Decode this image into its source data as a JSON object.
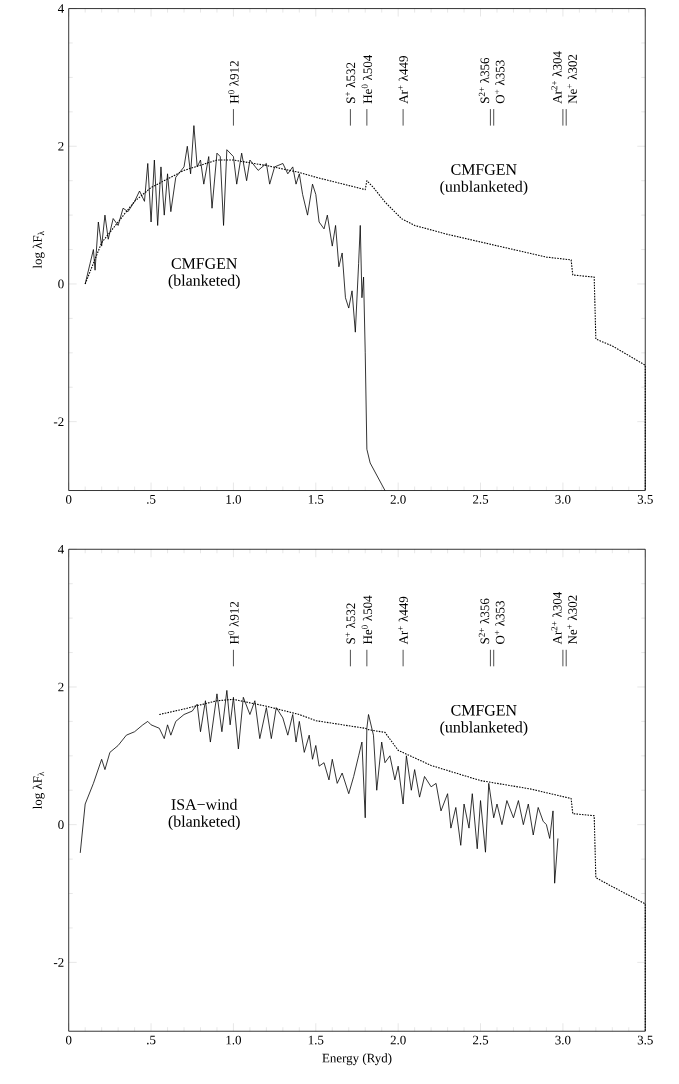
{
  "chart_data": [
    {
      "type": "line",
      "ylabel": "log λF$_{λ}$",
      "xlim": [
        0,
        3.5
      ],
      "ylim": [
        -3,
        4
      ],
      "xticks": [
        0,
        {
          "value": 0.5,
          "label": ".5"
        },
        {
          "value": 1.0,
          "label": "1.0"
        },
        {
          "value": 1.5,
          "label": "1.5"
        },
        {
          "value": 2.0,
          "label": "2.0"
        },
        {
          "value": 2.5,
          "label": "2.5"
        },
        {
          "value": 3.0,
          "label": "3.0"
        },
        {
          "value": 3.5,
          "label": "3.5"
        }
      ],
      "yticks": [
        -2,
        0,
        2,
        4
      ],
      "series": [
        {
          "color": "#000000",
          "line_style": "solid",
          "x": [
            0.1,
            0.13,
            0.15,
            0.16,
            0.18,
            0.2,
            0.22,
            0.24,
            0.27,
            0.3,
            0.33,
            0.36,
            0.4,
            0.43,
            0.46,
            0.48,
            0.5,
            0.52,
            0.54,
            0.56,
            0.58,
            0.6,
            0.62,
            0.65,
            0.7,
            0.72,
            0.74,
            0.76,
            0.78,
            0.8,
            0.82,
            0.85,
            0.87,
            0.9,
            0.92,
            0.94,
            0.96,
            1.0,
            1.02,
            1.05,
            1.08,
            1.1,
            1.15,
            1.2,
            1.22,
            1.25,
            1.3,
            1.33,
            1.36,
            1.38,
            1.4,
            1.42,
            1.45,
            1.48,
            1.5,
            1.52,
            1.55,
            1.57,
            1.6,
            1.62,
            1.64,
            1.66,
            1.68,
            1.7,
            1.72,
            1.74,
            1.76,
            1.77,
            1.78,
            1.79,
            1.8,
            1.81,
            1.83,
            1.92
          ],
          "values": [
            0.0,
            0.3,
            0.5,
            0.2,
            0.9,
            0.55,
            1.0,
            0.65,
            0.95,
            0.85,
            1.1,
            1.05,
            1.2,
            1.35,
            1.2,
            1.75,
            0.9,
            1.8,
            0.85,
            1.7,
            1.0,
            1.6,
            1.05,
            1.55,
            1.7,
            2.0,
            1.6,
            2.3,
            1.7,
            1.8,
            1.45,
            1.85,
            1.1,
            1.9,
            1.85,
            0.85,
            1.95,
            1.85,
            1.45,
            1.9,
            1.5,
            1.8,
            1.65,
            1.75,
            1.45,
            1.7,
            1.75,
            1.6,
            1.7,
            1.45,
            1.6,
            1.3,
            1.0,
            1.45,
            1.3,
            0.9,
            0.8,
            1.0,
            0.55,
            0.85,
            0.25,
            0.45,
            -0.2,
            -0.35,
            -0.1,
            -0.7,
            0.3,
            0.85,
            -0.2,
            0.1,
            -1.0,
            -2.4,
            -2.6,
            -3.0
          ]
        },
        {
          "color": "#000000",
          "line_style": "dotted",
          "x": [
            0.1,
            0.2,
            0.3,
            0.4,
            0.5,
            0.7,
            0.9,
            1.0,
            1.2,
            1.4,
            1.5,
            1.8,
            1.81,
            1.85,
            1.92,
            2.02,
            2.1,
            2.3,
            2.5,
            2.7,
            2.9,
            3.05,
            3.06,
            3.19,
            3.2,
            3.3,
            3.5,
            3.5
          ],
          "values": [
            0.0,
            0.6,
            0.9,
            1.2,
            1.4,
            1.65,
            1.8,
            1.8,
            1.72,
            1.62,
            1.55,
            1.37,
            1.5,
            1.4,
            1.19,
            0.95,
            0.85,
            0.72,
            0.61,
            0.5,
            0.39,
            0.35,
            0.13,
            0.1,
            -0.8,
            -0.9,
            -1.18,
            -3.0
          ]
        }
      ],
      "annotations": [
        "CMFGEN (blanketed)",
        "CMFGEN (unblanketed)"
      ],
      "ref_lines": [
        {
          "axis": "x",
          "value": 1.0,
          "label": "H$^{0}$ λ912"
        },
        {
          "axis": "x",
          "value": 1.71,
          "label": "S$^{+}$ λ532"
        },
        {
          "axis": "x",
          "value": 1.81,
          "label": "He$^{0}$ λ504"
        },
        {
          "axis": "x",
          "value": 2.03,
          "label": "Ar$^{+}$ λ449"
        },
        {
          "axis": "x",
          "value": 2.56,
          "label": "S$^{2+}$ λ356"
        },
        {
          "axis": "x",
          "value": 2.58,
          "label": "O$^{+}$ λ353"
        },
        {
          "axis": "x",
          "value": 3.0,
          "label": "Ar$^{2+}$ λ304"
        },
        {
          "axis": "x",
          "value": 3.02,
          "label": "Ne$^{+}$ λ302"
        }
      ]
    },
    {
      "type": "line",
      "xlabel": "Energy (Ryd)",
      "ylabel": "log λF$_{λ}$",
      "xlim": [
        0,
        3.5
      ],
      "ylim": [
        -3,
        4
      ],
      "xticks": [
        0,
        {
          "value": 0.5,
          "label": ".5"
        },
        {
          "value": 1.0,
          "label": "1.0"
        },
        {
          "value": 1.5,
          "label": "1.5"
        },
        {
          "value": 2.0,
          "label": "2.0"
        },
        {
          "value": 2.5,
          "label": "2.5"
        },
        {
          "value": 3.0,
          "label": "3.0"
        },
        {
          "value": 3.5,
          "label": "3.5"
        }
      ],
      "yticks": [
        -2,
        0,
        2,
        4
      ],
      "series": [
        {
          "color": "#000000",
          "line_style": "solid",
          "x": [
            0.07,
            0.1,
            0.15,
            0.2,
            0.22,
            0.25,
            0.3,
            0.35,
            0.4,
            0.45,
            0.48,
            0.5,
            0.55,
            0.58,
            0.6,
            0.62,
            0.65,
            0.7,
            0.75,
            0.78,
            0.8,
            0.83,
            0.86,
            0.9,
            0.93,
            0.96,
            0.98,
            1.0,
            1.03,
            1.06,
            1.1,
            1.13,
            1.16,
            1.2,
            1.23,
            1.26,
            1.3,
            1.33,
            1.36,
            1.38,
            1.4,
            1.43,
            1.46,
            1.48,
            1.5,
            1.52,
            1.55,
            1.58,
            1.6,
            1.63,
            1.66,
            1.7,
            1.73,
            1.76,
            1.78,
            1.8,
            1.81,
            1.82,
            1.85,
            1.87,
            1.9,
            1.92,
            1.95,
            1.98,
            2.0,
            2.03,
            2.05,
            2.08,
            2.1,
            2.13,
            2.16,
            2.2,
            2.23,
            2.26,
            2.3,
            2.32,
            2.35,
            2.38,
            2.4,
            2.43,
            2.45,
            2.48,
            2.5,
            2.53,
            2.55,
            2.58,
            2.6,
            2.63,
            2.66,
            2.7,
            2.73,
            2.76,
            2.79,
            2.82,
            2.85,
            2.88,
            2.9,
            2.92,
            2.94,
            2.95,
            2.97
          ],
          "values": [
            -0.41,
            0.3,
            0.6,
            0.95,
            0.8,
            1.05,
            1.15,
            1.3,
            1.35,
            1.45,
            1.5,
            1.45,
            1.4,
            1.25,
            1.45,
            1.3,
            1.5,
            1.6,
            1.65,
            1.75,
            1.35,
            1.8,
            1.2,
            1.9,
            1.35,
            1.95,
            1.45,
            1.85,
            1.1,
            1.85,
            1.6,
            1.8,
            1.25,
            1.7,
            1.25,
            1.7,
            1.55,
            1.3,
            1.6,
            1.2,
            1.5,
            1.05,
            1.3,
            0.95,
            1.15,
            0.85,
            0.9,
            0.65,
            0.95,
            0.6,
            0.75,
            0.45,
            0.7,
            1.0,
            1.2,
            0.1,
            1.4,
            1.6,
            1.3,
            0.5,
            1.2,
            0.9,
            1.0,
            0.65,
            0.85,
            0.3,
            1.0,
            0.5,
            0.8,
            0.4,
            0.7,
            0.55,
            0.6,
            0.2,
            0.45,
            -0.05,
            0.25,
            -0.3,
            0.3,
            -0.05,
            0.45,
            -0.35,
            0.35,
            -0.4,
            0.6,
            0.1,
            0.3,
            0.0,
            0.35,
            0.1,
            0.35,
            0.0,
            0.3,
            -0.15,
            0.25,
            0.05,
            0.0,
            -0.2,
            0.2,
            -0.85,
            -0.2
          ]
        },
        {
          "color": "#000000",
          "line_style": "dotted",
          "x": [
            0.55,
            0.7,
            0.9,
            1.0,
            1.2,
            1.4,
            1.5,
            1.8,
            1.82,
            1.92,
            2.0,
            2.2,
            2.5,
            2.8,
            3.05,
            3.06,
            3.19,
            3.2,
            3.3,
            3.5,
            3.5
          ],
          "values": [
            1.6,
            1.68,
            1.8,
            1.82,
            1.72,
            1.6,
            1.51,
            1.4,
            1.38,
            1.34,
            1.08,
            0.86,
            0.64,
            0.52,
            0.38,
            0.16,
            0.13,
            -0.77,
            -0.9,
            -1.15,
            -3.0
          ]
        }
      ],
      "annotations": [
        "ISA−wind (blanketed)",
        "CMFGEN (unblanketed)"
      ],
      "ref_lines": [
        {
          "axis": "x",
          "value": 1.0,
          "label": "H$^{0}$ λ912"
        },
        {
          "axis": "x",
          "value": 1.71,
          "label": "S$^{+}$ λ532"
        },
        {
          "axis": "x",
          "value": 1.81,
          "label": "He$^{0}$ λ504"
        },
        {
          "axis": "x",
          "value": 2.03,
          "label": "Ar$^{+}$ λ449"
        },
        {
          "axis": "x",
          "value": 2.56,
          "label": "S$^{2+}$ λ356"
        },
        {
          "axis": "x",
          "value": 2.58,
          "label": "O$^{+}$ λ353"
        },
        {
          "axis": "x",
          "value": 3.0,
          "label": "Ar$^{2+}$ λ304"
        },
        {
          "axis": "x",
          "value": 3.02,
          "label": "Ne$^{+}$ λ302"
        }
      ]
    }
  ]
}
